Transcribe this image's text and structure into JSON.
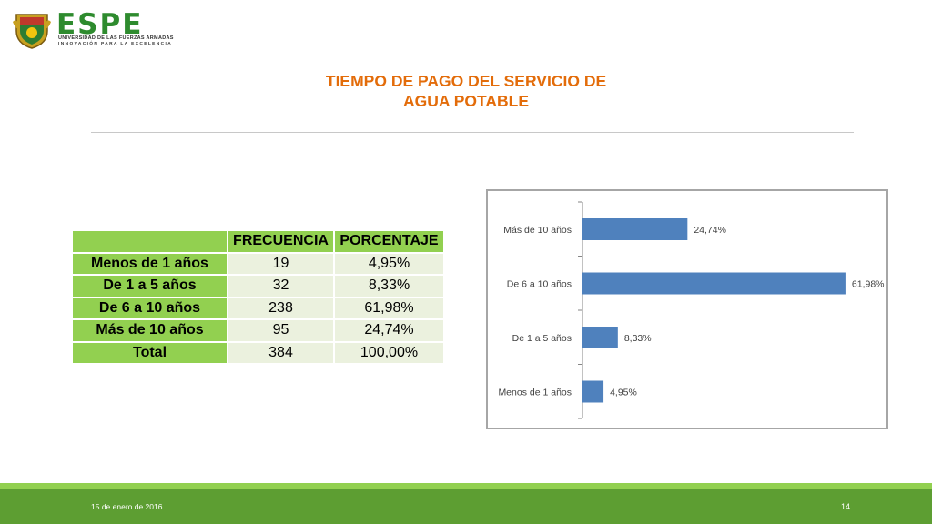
{
  "logo": {
    "brand": "ESPE",
    "line1": "UNIVERSIDAD DE LAS FUERZAS ARMADAS",
    "line2": "INNOVACIÓN PARA LA EXCELENCIA"
  },
  "title_line1": "TIEMPO DE PAGO DEL SERVICIO DE",
  "title_line2": "AGUA POTABLE",
  "table": {
    "headers": [
      "",
      "FRECUENCIA",
      "PORCENTAJE"
    ],
    "rows": [
      {
        "label": "Menos de 1 años",
        "freq": "19",
        "pct": "4,95%"
      },
      {
        "label": "De 1 a 5 años",
        "freq": "32",
        "pct": "8,33%"
      },
      {
        "label": "De 6 a 10 años",
        "freq": "238",
        "pct": "61,98%"
      },
      {
        "label": "Más de 10 años",
        "freq": "95",
        "pct": "24,74%"
      },
      {
        "label": "Total",
        "freq": "384",
        "pct": "100,00%"
      }
    ]
  },
  "chart_data": {
    "type": "bar",
    "orientation": "horizontal",
    "categories": [
      "Más de 10 años",
      "De 6 a 10 años",
      "De 1 a 5 años",
      "Menos de 1 años"
    ],
    "values": [
      24.74,
      61.98,
      8.33,
      4.95
    ],
    "labels": [
      "24,74%",
      "61,98%",
      "8,33%",
      "4,95%"
    ],
    "xlim": [
      0,
      62
    ],
    "bar_color": "#4f81bd",
    "grid": false
  },
  "footer": {
    "date": "15 de enero de 2016",
    "page": "14"
  }
}
